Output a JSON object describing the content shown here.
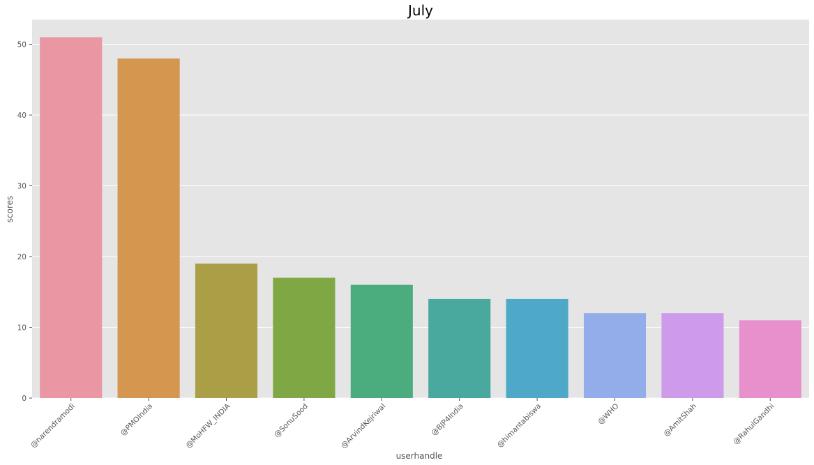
{
  "chart_data": {
    "type": "bar",
    "title": "July",
    "xlabel": "userhandle",
    "ylabel": "scores",
    "categories": [
      "@narendramodi",
      "@PMOIndia",
      "@MoHFW_INDIA",
      "@SonuSood",
      "@ArvindKejriwal",
      "@BJP4India",
      "@himantabiswa",
      "@WHO",
      "@AmitShah",
      "@RahulGandhi"
    ],
    "values": [
      51,
      48,
      19,
      17,
      16,
      14,
      14,
      12,
      12,
      11
    ],
    "colors": [
      "#ea96a3",
      "#d59650",
      "#aa9e47",
      "#7fa844",
      "#4bac7d",
      "#4aa99e",
      "#4ea9c9",
      "#92adea",
      "#cd9be9",
      "#e890cc"
    ],
    "ylim": [
      0,
      53.5
    ],
    "yticks": [
      0,
      10,
      20,
      30,
      40,
      50
    ],
    "grid": true,
    "background": "#e5e5e5",
    "grid_color": "#ffffff"
  }
}
